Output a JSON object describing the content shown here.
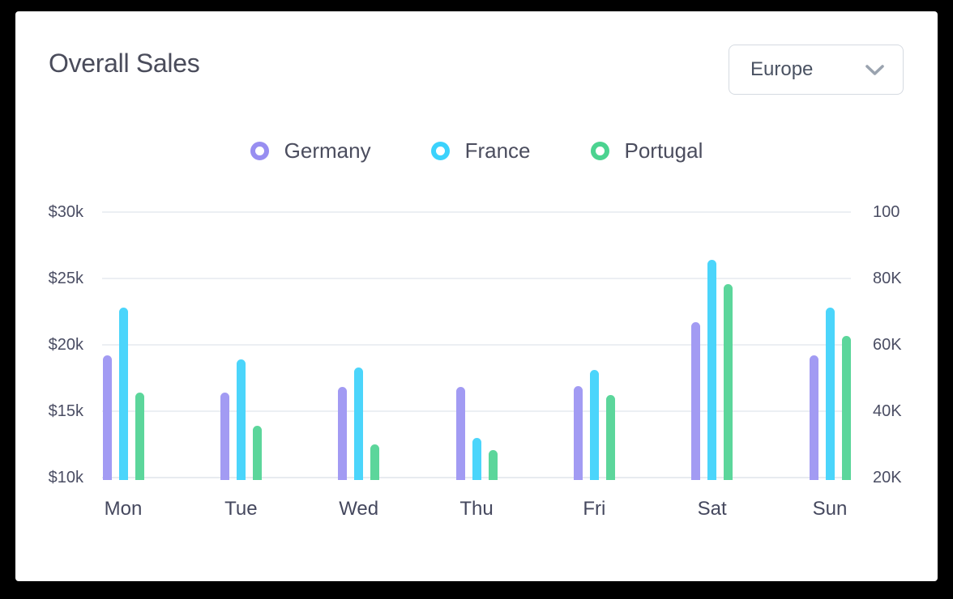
{
  "page": {
    "background": "#000000"
  },
  "card": {
    "title": "Overall Sales",
    "dropdown": {
      "value": "Europe",
      "chevron_color": "#9aa3af"
    }
  },
  "legend": {
    "items": [
      {
        "label": "Germany",
        "color": "#988ef1"
      },
      {
        "label": "France",
        "color": "#3bd2fc"
      },
      {
        "label": "Portugal",
        "color": "#4bd390"
      }
    ]
  },
  "chart_data": {
    "type": "bar",
    "title": "Overall Sales",
    "categories": [
      "Mon",
      "Tue",
      "Wed",
      "Thu",
      "Fri",
      "Sat",
      "Sun"
    ],
    "series": [
      {
        "name": "Germany",
        "color": "#a29bf3",
        "values": [
          19.2,
          16.4,
          16.8,
          16.8,
          16.9,
          21.7,
          19.2
        ]
      },
      {
        "name": "France",
        "color": "#4bd5fb",
        "values": [
          22.8,
          18.9,
          18.3,
          13.0,
          18.1,
          26.4,
          22.8
        ]
      },
      {
        "name": "Portugal",
        "color": "#5cd69b",
        "values": [
          16.4,
          13.9,
          12.5,
          12.1,
          16.2,
          24.6,
          20.7
        ]
      }
    ],
    "left_axis": {
      "unit": "USD thousands",
      "min": 10,
      "max": 30,
      "tick_values": [
        30,
        25,
        20,
        15,
        10
      ],
      "tick_labels": [
        "$30k",
        "$25k",
        "$20k",
        "$15k",
        "$10k"
      ]
    },
    "right_axis": {
      "tick_labels": [
        "100",
        "80K",
        "60K",
        "40K",
        "20K"
      ]
    },
    "grid": true,
    "legend_position": "top",
    "gridline_color": "#eceff3"
  }
}
